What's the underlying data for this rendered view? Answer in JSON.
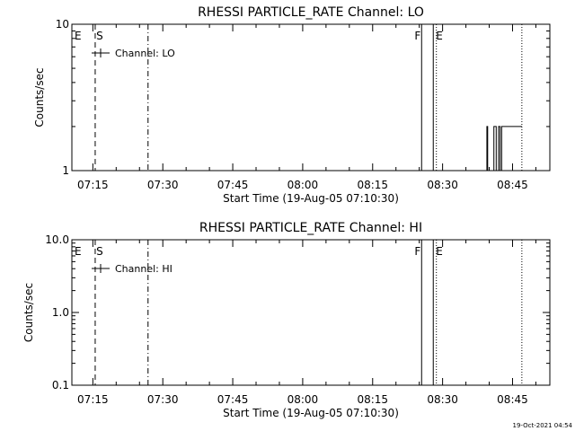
{
  "chart_data": [
    {
      "type": "line",
      "title": "RHESSI PARTICLE_RATE Channel: LO",
      "xlabel": "Start Time (19-Aug-05 07:10:30)",
      "ylabel": "Counts/sec",
      "yscale": "log",
      "xlim": [
        "07:10:30",
        "08:53:00"
      ],
      "ylim": [
        1,
        10
      ],
      "xticks": [
        "07:15",
        "07:30",
        "07:45",
        "08:00",
        "08:15",
        "08:30",
        "08:45"
      ],
      "yticks": [
        {
          "value": 1,
          "label": "1"
        },
        {
          "value": 10,
          "label": "10"
        }
      ],
      "legend": {
        "label": "Channel: LO",
        "position": "top-left"
      },
      "markers": [
        {
          "label": "E",
          "time": "07:10:30",
          "style": "none"
        },
        {
          "label": "S",
          "time": "07:15:30",
          "style": "dashed"
        },
        {
          "label": "",
          "time": "07:26:50",
          "style": "dash-dot"
        },
        {
          "label": "F",
          "time": "08:25:30",
          "style": "solid"
        },
        {
          "label": "E",
          "time": "08:28:00",
          "style": "solid"
        },
        {
          "label": "",
          "time": "08:28:40",
          "style": "dotted"
        },
        {
          "label": "",
          "time": "08:47:00",
          "style": "dotted"
        }
      ],
      "series": [
        {
          "x": [
            "08:39:20",
            "08:39:30",
            "08:39:40",
            "08:40:20",
            "08:40:50",
            "08:41:00",
            "08:41:30",
            "08:42:00",
            "08:42:20",
            "08:42:40",
            "08:43:00",
            "08:47:00"
          ],
          "y": [
            1,
            2,
            1,
            1,
            1,
            2,
            1,
            2,
            1,
            2,
            2,
            2
          ]
        }
      ]
    },
    {
      "type": "line",
      "title": "RHESSI PARTICLE_RATE Channel: HI",
      "xlabel": "Start Time (19-Aug-05 07:10:30)",
      "ylabel": "Counts/sec",
      "yscale": "log",
      "xlim": [
        "07:10:30",
        "08:53:00"
      ],
      "ylim": [
        0.1,
        10
      ],
      "xticks": [
        "07:15",
        "07:30",
        "07:45",
        "08:00",
        "08:15",
        "08:30",
        "08:45"
      ],
      "yticks": [
        {
          "value": 0.1,
          "label": "0.1"
        },
        {
          "value": 1,
          "label": "1.0"
        },
        {
          "value": 10,
          "label": "10.0"
        }
      ],
      "legend": {
        "label": "Channel: HI",
        "position": "top-left"
      },
      "markers": [
        {
          "label": "E",
          "time": "07:10:30",
          "style": "none"
        },
        {
          "label": "S",
          "time": "07:15:30",
          "style": "dashed"
        },
        {
          "label": "",
          "time": "07:26:50",
          "style": "dash-dot"
        },
        {
          "label": "F",
          "time": "08:25:30",
          "style": "solid"
        },
        {
          "label": "E",
          "time": "08:28:00",
          "style": "solid"
        },
        {
          "label": "",
          "time": "08:28:40",
          "style": "dotted"
        },
        {
          "label": "",
          "time": "08:47:00",
          "style": "dotted"
        }
      ],
      "series": []
    }
  ],
  "footer": {
    "timestamp": "19-Oct-2021 04:54"
  }
}
